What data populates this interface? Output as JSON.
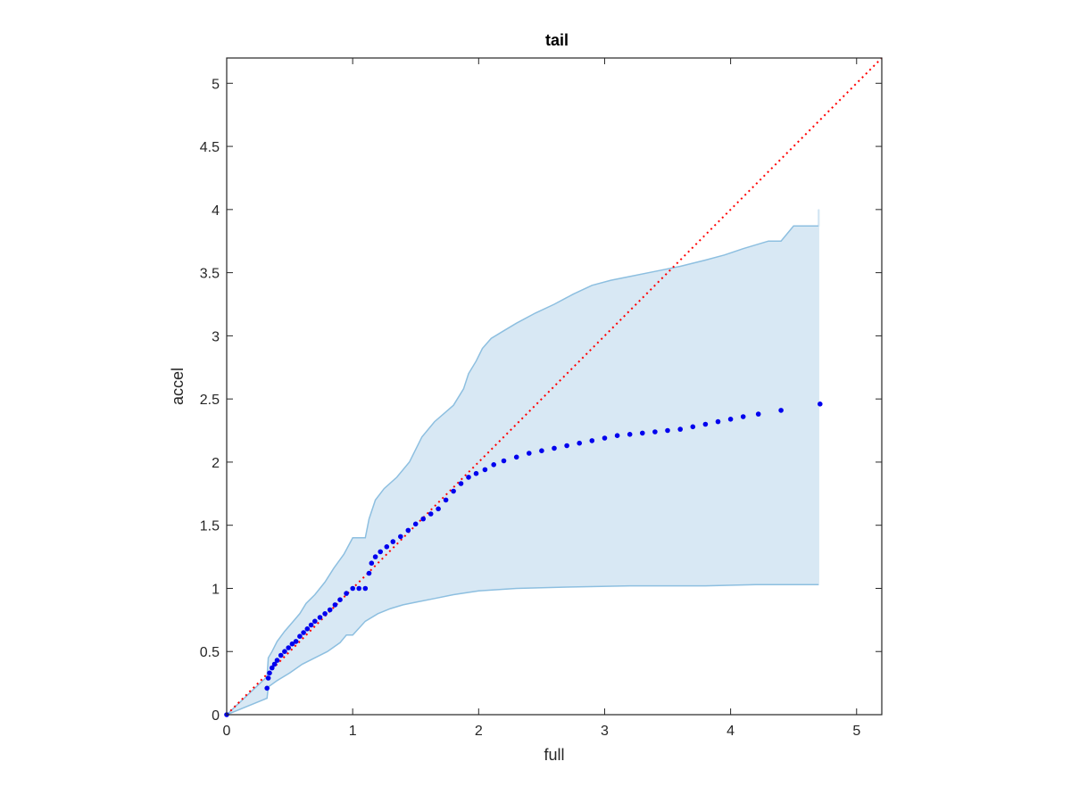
{
  "chart_data": {
    "type": "scatter",
    "title": "tail",
    "xlabel": "full",
    "ylabel": "accel",
    "xlim": [
      0,
      5.2
    ],
    "ylim": [
      0,
      5.2
    ],
    "xticks": [
      0,
      1,
      2,
      3,
      4,
      5
    ],
    "yticks": [
      0,
      0.5,
      1,
      1.5,
      2,
      2.5,
      3,
      3.5,
      4,
      4.5,
      5
    ],
    "xtick_labels": [
      "0",
      "1",
      "2",
      "3",
      "4",
      "5"
    ],
    "ytick_labels": [
      "0",
      "0.5",
      "1",
      "1.5",
      "2",
      "2.5",
      "3",
      "3.5",
      "4",
      "4.5",
      "5"
    ],
    "grid": false,
    "colors": {
      "points": "#0000ee",
      "reference_line": "#ff0000",
      "band_fill": "#d8e8f4",
      "band_edge": "#8dbfe0",
      "axis": "#262626"
    },
    "reference_line": {
      "x": [
        0,
        5.2
      ],
      "y": [
        0,
        5.2
      ],
      "style": "dotted"
    },
    "band_upper": {
      "x": [
        0,
        0.32,
        0.33,
        0.36,
        0.4,
        0.46,
        0.52,
        0.58,
        0.63,
        0.7,
        0.78,
        0.85,
        0.93,
        1.0,
        1.05,
        1.1,
        1.13,
        1.18,
        1.25,
        1.35,
        1.45,
        1.55,
        1.65,
        1.72,
        1.8,
        1.88,
        1.92,
        1.98,
        2.03,
        2.1,
        2.2,
        2.3,
        2.45,
        2.6,
        2.75,
        2.9,
        3.05,
        3.2,
        3.4,
        3.6,
        3.8,
        3.95,
        4.1,
        4.3,
        4.4,
        4.5,
        4.6,
        4.7,
        4.7
      ],
      "y": [
        0,
        0.3,
        0.45,
        0.5,
        0.58,
        0.66,
        0.73,
        0.8,
        0.88,
        0.95,
        1.05,
        1.16,
        1.27,
        1.4,
        1.4,
        1.4,
        1.55,
        1.7,
        1.79,
        1.88,
        2.0,
        2.2,
        2.32,
        2.38,
        2.45,
        2.58,
        2.7,
        2.8,
        2.9,
        2.98,
        3.04,
        3.1,
        3.18,
        3.25,
        3.33,
        3.4,
        3.44,
        3.47,
        3.51,
        3.55,
        3.6,
        3.64,
        3.69,
        3.75,
        3.75,
        3.87,
        3.87,
        3.87,
        4.0
      ]
    },
    "band_lower": {
      "x": [
        0,
        0.32,
        0.33,
        0.4,
        0.5,
        0.6,
        0.7,
        0.8,
        0.9,
        0.95,
        1.0,
        1.1,
        1.2,
        1.3,
        1.4,
        1.5,
        1.65,
        1.8,
        2.0,
        2.3,
        2.7,
        3.2,
        3.8,
        4.2,
        4.7
      ],
      "y": [
        0,
        0.13,
        0.22,
        0.27,
        0.33,
        0.4,
        0.45,
        0.5,
        0.57,
        0.63,
        0.63,
        0.74,
        0.8,
        0.84,
        0.87,
        0.89,
        0.92,
        0.95,
        0.98,
        1.0,
        1.01,
        1.02,
        1.02,
        1.03,
        1.03
      ]
    },
    "points": {
      "x": [
        0.0,
        0.32,
        0.33,
        0.34,
        0.36,
        0.38,
        0.4,
        0.43,
        0.46,
        0.49,
        0.52,
        0.55,
        0.58,
        0.61,
        0.64,
        0.67,
        0.7,
        0.74,
        0.78,
        0.82,
        0.86,
        0.9,
        0.95,
        1.0,
        1.05,
        1.1,
        1.13,
        1.15,
        1.18,
        1.22,
        1.27,
        1.32,
        1.38,
        1.44,
        1.5,
        1.56,
        1.62,
        1.68,
        1.74,
        1.8,
        1.86,
        1.92,
        1.98,
        2.05,
        2.12,
        2.2,
        2.3,
        2.4,
        2.5,
        2.6,
        2.7,
        2.8,
        2.9,
        3.0,
        3.1,
        3.2,
        3.3,
        3.4,
        3.5,
        3.6,
        3.7,
        3.8,
        3.9,
        4.0,
        4.1,
        4.22,
        4.4,
        4.71
      ],
      "y": [
        0.0,
        0.21,
        0.29,
        0.33,
        0.37,
        0.4,
        0.43,
        0.47,
        0.5,
        0.53,
        0.56,
        0.58,
        0.62,
        0.65,
        0.68,
        0.71,
        0.74,
        0.77,
        0.8,
        0.83,
        0.87,
        0.91,
        0.96,
        1.0,
        1.0,
        1.0,
        1.12,
        1.2,
        1.25,
        1.29,
        1.33,
        1.37,
        1.41,
        1.46,
        1.51,
        1.55,
        1.59,
        1.63,
        1.7,
        1.77,
        1.83,
        1.88,
        1.91,
        1.94,
        1.98,
        2.01,
        2.04,
        2.07,
        2.09,
        2.11,
        2.13,
        2.15,
        2.17,
        2.19,
        2.21,
        2.22,
        2.23,
        2.24,
        2.25,
        2.26,
        2.28,
        2.3,
        2.32,
        2.34,
        2.36,
        2.38,
        2.41,
        2.46
      ]
    }
  }
}
